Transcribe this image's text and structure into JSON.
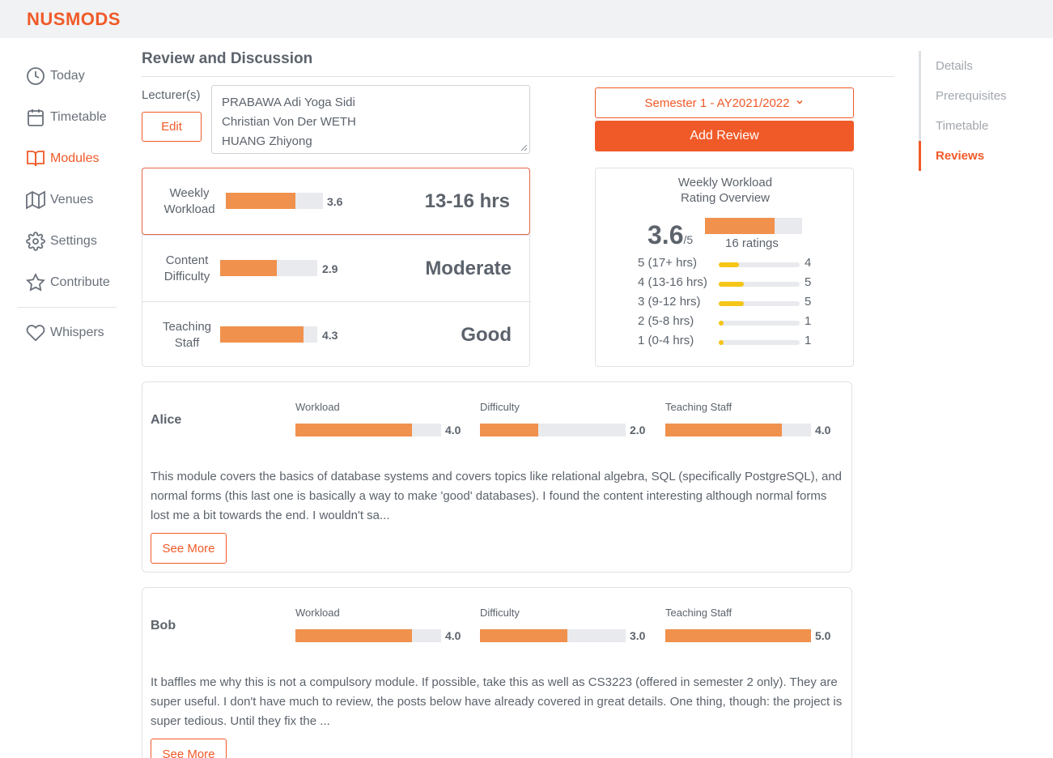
{
  "app": {
    "logo": "NUSMODS"
  },
  "sidebar": {
    "items": [
      {
        "label": "Today",
        "icon": "clock-icon"
      },
      {
        "label": "Timetable",
        "icon": "calendar-icon"
      },
      {
        "label": "Modules",
        "icon": "book-open-icon",
        "active": true
      },
      {
        "label": "Venues",
        "icon": "map-icon"
      },
      {
        "label": "Settings",
        "icon": "gear-icon"
      },
      {
        "label": "Contribute",
        "icon": "star-icon"
      }
    ],
    "bottom": {
      "label": "Whispers",
      "icon": "heart-icon"
    }
  },
  "right_nav": {
    "items": [
      {
        "label": "Details"
      },
      {
        "label": "Prerequisites"
      },
      {
        "label": "Timetable"
      },
      {
        "label": "Reviews",
        "active": true
      }
    ]
  },
  "section": {
    "title": "Review and Discussion"
  },
  "lecturers": {
    "label": "Lecturer(s)",
    "edit_label": "Edit",
    "names": [
      "PRABAWA Adi Yoga Sidi",
      "Christian Von Der WETH",
      "HUANG Zhiyong"
    ]
  },
  "semester_select": {
    "value": "Semester 1 - AY2021/2022"
  },
  "add_review_label": "Add Review",
  "summary": [
    {
      "label_line1": "Weekly",
      "label_line2": "Workload",
      "score": "3.6",
      "fraction": 0.72,
      "verdict": "13-16 hrs"
    },
    {
      "label_line1": "Content",
      "label_line2": "Difficulty",
      "score": "2.9",
      "fraction": 0.58,
      "verdict": "Moderate"
    },
    {
      "label_line1": "Teaching",
      "label_line2": "Staff",
      "score": "4.3",
      "fraction": 0.86,
      "verdict": "Good"
    }
  ],
  "overview": {
    "title_line1": "Weekly Workload",
    "title_line2": "Rating Overview",
    "average": "3.6",
    "out_of": "/5",
    "fraction": 0.72,
    "ratings_count": "16 ratings",
    "distribution": [
      {
        "label": "5 (17+ hrs)",
        "count": "4",
        "fraction": 0.25
      },
      {
        "label": "4 (13-16 hrs)",
        "count": "5",
        "fraction": 0.31
      },
      {
        "label": "3 (9-12 hrs)",
        "count": "5",
        "fraction": 0.31
      },
      {
        "label": "2 (5-8 hrs)",
        "count": "1",
        "fraction": 0.06
      },
      {
        "label": "1 (0-4 hrs)",
        "count": "1",
        "fraction": 0.06
      }
    ]
  },
  "reviews": [
    {
      "author": "Alice",
      "metrics": [
        {
          "label": "Workload",
          "value": "4.0",
          "fraction": 0.8
        },
        {
          "label": "Difficulty",
          "value": "2.0",
          "fraction": 0.4
        },
        {
          "label": "Teaching Staff",
          "value": "4.0",
          "fraction": 0.8
        }
      ],
      "text": "This module covers the basics of database systems and covers topics like relational algebra, SQL (specifically PostgreSQL), and normal forms (this last one is basically a way to make 'good' databases). I found the content interesting although normal forms lost me a bit towards the end. I wouldn't sa...",
      "see_more_label": "See More"
    },
    {
      "author": "Bob",
      "metrics": [
        {
          "label": "Workload",
          "value": "4.0",
          "fraction": 0.8
        },
        {
          "label": "Difficulty",
          "value": "3.0",
          "fraction": 0.6
        },
        {
          "label": "Teaching Staff",
          "value": "5.0",
          "fraction": 1.0
        }
      ],
      "text": "It baffles me why this is not a compulsory module. If possible, take this as well as CS3223 (offered in semester 2 only). They are super useful. I don't have much to review, the posts below have already covered in great details. One thing, though: the project is super tedious. Until they fix the ...",
      "see_more_label": "See More"
    }
  ],
  "colors": {
    "accent": "#f05a28",
    "bar": "#f0914d",
    "dist_bar": "#f5c518",
    "text": "#5c636c"
  }
}
